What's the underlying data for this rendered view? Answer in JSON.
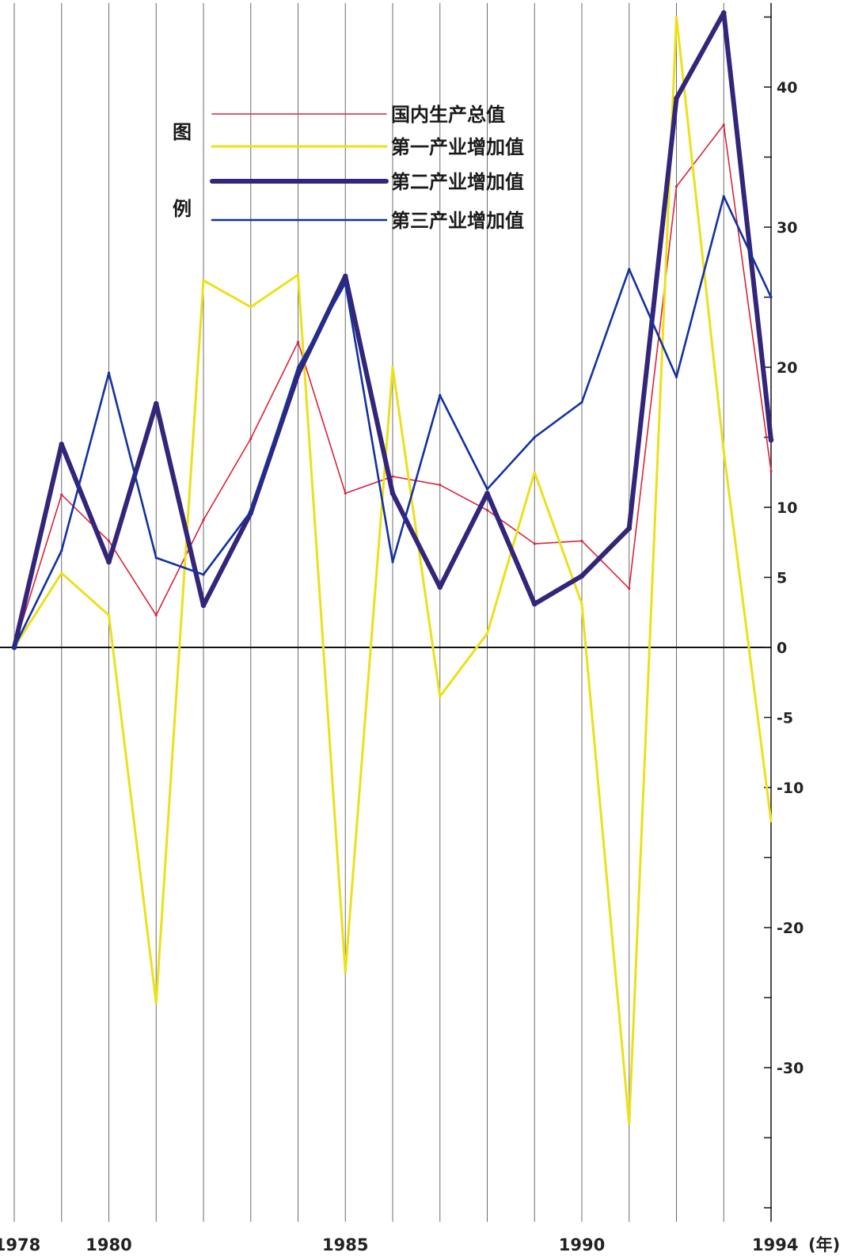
{
  "chart_data": {
    "type": "line",
    "xlabel": "(年)",
    "x": [
      1978,
      1979,
      1980,
      1981,
      1982,
      1983,
      1984,
      1985,
      1986,
      1987,
      1988,
      1989,
      1990,
      1991,
      1992,
      1993,
      1994
    ],
    "x_tick_labels": [
      {
        "x": 1978,
        "label": "1978"
      },
      {
        "x": 1980,
        "label": "1980"
      },
      {
        "x": 1985,
        "label": "1985"
      },
      {
        "x": 1990,
        "label": "1990"
      },
      {
        "x": 1994,
        "label": "1994"
      }
    ],
    "y_tick_labels": [
      {
        "y": 40,
        "label": "40"
      },
      {
        "y": 30,
        "label": "30"
      },
      {
        "y": 20,
        "label": "20"
      },
      {
        "y": 10,
        "label": "10"
      },
      {
        "y": 5,
        "label": "5"
      },
      {
        "y": 0,
        "label": "0"
      },
      {
        "y": -5,
        "label": "-5"
      },
      {
        "y": -10,
        "label": "-10"
      },
      {
        "y": -20,
        "label": "-20"
      },
      {
        "y": -30,
        "label": "-30"
      }
    ],
    "y_ticks": [
      45,
      40,
      35,
      30,
      25,
      20,
      15,
      10,
      5,
      0,
      -5,
      -10,
      -15,
      -20,
      -25,
      -30,
      -35,
      -40
    ],
    "ylim": [
      -41,
      46
    ],
    "legend_title": [
      "图",
      "例"
    ],
    "legend_placement": "top-center",
    "grid": "vertical lines at each year",
    "series": [
      {
        "name": "国内生产总值",
        "color": "#d8243c",
        "width": 1.6,
        "values": [
          0,
          10.9,
          7.6,
          2.3,
          9.1,
          14.9,
          21.8,
          11.0,
          12.2,
          11.6,
          9.8,
          7.4,
          7.6,
          4.2,
          32.9,
          37.3,
          12.6
        ]
      },
      {
        "name": "第一产业增加值",
        "color": "#ece01a",
        "width": 3,
        "values": [
          0,
          5.3,
          2.3,
          -25.4,
          26.2,
          24.3,
          26.6,
          -23.2,
          20.0,
          -3.5,
          1.0,
          12.5,
          3.1,
          -34.0,
          45.0,
          14.0,
          -12.4
        ]
      },
      {
        "name": "第二产业增加值",
        "color": "#33267a",
        "width": 6,
        "values": [
          0,
          14.5,
          6.1,
          17.4,
          3.0,
          9.6,
          19.5,
          26.5,
          11.0,
          4.3,
          11.0,
          3.1,
          5.1,
          8.5,
          39.2,
          45.3,
          14.8
        ]
      },
      {
        "name": "第三产业增加值",
        "color": "#13329e",
        "width": 2.6,
        "values": [
          0,
          6.9,
          19.6,
          6.4,
          5.2,
          9.7,
          20.0,
          26.0,
          6.1,
          18.0,
          11.3,
          15.0,
          17.5,
          27.0,
          19.3,
          32.2,
          25.0
        ]
      }
    ]
  }
}
